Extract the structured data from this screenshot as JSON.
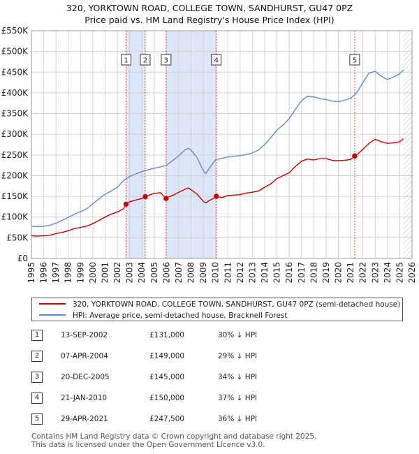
{
  "title_line1": "320, YORKTOWN ROAD, COLLEGE TOWN, SANDHURST, GU47 0PZ",
  "title_line2": "Price paid vs. HM Land Registry's House Price Index (HPI)",
  "colors": {
    "hpi": "#5b8ccc",
    "price": "#c00000",
    "shade": "#dde6f6",
    "grid": "#d0d0d0"
  },
  "chart_data": {
    "type": "line",
    "title": "320, YORKTOWN ROAD, COLLEGE TOWN, SANDHURST, GU47 0PZ — Price paid vs. HM Land Registry's House Price Index (HPI)",
    "xlim": [
      1995,
      2026
    ],
    "ylim": [
      0,
      550000
    ],
    "x_ticks": [
      "1995",
      "1996",
      "1997",
      "1998",
      "1999",
      "2000",
      "2001",
      "2002",
      "2003",
      "2004",
      "2005",
      "2006",
      "2007",
      "2008",
      "2009",
      "2010",
      "2011",
      "2012",
      "2013",
      "2014",
      "2015",
      "2016",
      "2017",
      "2018",
      "2019",
      "2020",
      "2021",
      "2022",
      "2023",
      "2024",
      "2025",
      "2026"
    ],
    "y_ticks": [
      {
        "value": 0,
        "label": "£0"
      },
      {
        "value": 50000,
        "label": "£50K"
      },
      {
        "value": 100000,
        "label": "£100K"
      },
      {
        "value": 150000,
        "label": "£150K"
      },
      {
        "value": 200000,
        "label": "£200K"
      },
      {
        "value": 250000,
        "label": "£250K"
      },
      {
        "value": 300000,
        "label": "£300K"
      },
      {
        "value": 350000,
        "label": "£350K"
      },
      {
        "value": 400000,
        "label": "£400K"
      },
      {
        "value": 450000,
        "label": "£450K"
      },
      {
        "value": 500000,
        "label": "£500K"
      },
      {
        "value": 550000,
        "label": "£550K"
      }
    ],
    "shaded_ranges": [
      [
        2002.71,
        2004.27
      ],
      [
        2005.97,
        2010.06
      ],
      [
        2021.33,
        2021.33
      ]
    ],
    "future_hatch_from": 2025.3,
    "series": [
      {
        "name": "320, YORKTOWN ROAD, COLLEGE TOWN, SANDHURST, GU47 0PZ (semi-detached house)",
        "color": "#c00000",
        "x": [
          1995.0,
          1995.5,
          1996.0,
          1996.5,
          1997.0,
          1997.5,
          1998.0,
          1998.5,
          1999.0,
          1999.5,
          2000.0,
          2000.5,
          2001.0,
          2001.5,
          2002.0,
          2002.5,
          2002.71,
          2003.0,
          2003.5,
          2004.0,
          2004.27,
          2004.5,
          2005.0,
          2005.5,
          2005.97,
          2006.0,
          2006.5,
          2007.0,
          2007.5,
          2007.8,
          2008.0,
          2008.5,
          2009.0,
          2009.2,
          2009.5,
          2010.0,
          2010.06,
          2010.5,
          2011.0,
          2011.5,
          2012.0,
          2012.5,
          2013.0,
          2013.5,
          2014.0,
          2014.5,
          2015.0,
          2015.5,
          2016.0,
          2016.5,
          2017.0,
          2017.5,
          2018.0,
          2018.5,
          2019.0,
          2019.5,
          2020.0,
          2020.5,
          2021.0,
          2021.33,
          2021.5,
          2022.0,
          2022.5,
          2023.0,
          2023.5,
          2024.0,
          2024.5,
          2025.0,
          2025.3
        ],
        "values": [
          55000,
          54000,
          55000,
          56000,
          60000,
          63000,
          67000,
          72000,
          75000,
          78000,
          84000,
          92000,
          100000,
          107000,
          112000,
          120000,
          131000,
          137000,
          141000,
          145000,
          149000,
          152000,
          157000,
          159000,
          145000,
          147000,
          152000,
          160000,
          167000,
          170000,
          166000,
          155000,
          138000,
          134000,
          140000,
          148000,
          150000,
          147000,
          152000,
          153000,
          154000,
          158000,
          160000,
          163000,
          172000,
          180000,
          193000,
          200000,
          207000,
          222000,
          235000,
          240000,
          238000,
          241000,
          241000,
          237000,
          236000,
          237000,
          239000,
          247500,
          250000,
          264000,
          278000,
          288000,
          282000,
          278000,
          279000,
          282000,
          289000
        ]
      },
      {
        "name": "HPI: Average price, semi-detached house, Bracknell Forest",
        "color": "#5b8ccc",
        "x": [
          1995.0,
          1995.5,
          1996.0,
          1996.5,
          1997.0,
          1997.5,
          1998.0,
          1998.5,
          1999.0,
          1999.5,
          2000.0,
          2000.5,
          2001.0,
          2001.5,
          2002.0,
          2002.5,
          2003.0,
          2003.5,
          2004.0,
          2004.5,
          2005.0,
          2005.5,
          2006.0,
          2006.5,
          2007.0,
          2007.5,
          2007.8,
          2008.0,
          2008.5,
          2009.0,
          2009.2,
          2009.5,
          2010.0,
          2010.5,
          2011.0,
          2011.5,
          2012.0,
          2012.5,
          2013.0,
          2013.5,
          2014.0,
          2014.5,
          2015.0,
          2015.5,
          2016.0,
          2016.5,
          2017.0,
          2017.5,
          2018.0,
          2018.5,
          2019.0,
          2019.5,
          2020.0,
          2020.5,
          2021.0,
          2021.5,
          2022.0,
          2022.5,
          2023.0,
          2023.5,
          2024.0,
          2024.5,
          2025.0,
          2025.3
        ],
        "values": [
          78000,
          77000,
          78000,
          80000,
          85000,
          92000,
          99000,
          107000,
          113000,
          120000,
          132000,
          144000,
          155000,
          163000,
          172000,
          188000,
          198000,
          204000,
          210000,
          214000,
          218000,
          221000,
          225000,
          236000,
          248000,
          262000,
          266000,
          262000,
          243000,
          212000,
          205000,
          218000,
          238000,
          242000,
          245000,
          247000,
          248000,
          251000,
          255000,
          262000,
          275000,
          292000,
          310000,
          322000,
          338000,
          360000,
          381000,
          392000,
          390000,
          386000,
          384000,
          380000,
          379000,
          382000,
          387000,
          400000,
          425000,
          448000,
          452000,
          440000,
          432000,
          438000,
          446000,
          455000
        ]
      }
    ],
    "sales": [
      {
        "n": "1",
        "date": "13-SEP-2002",
        "price": "£131,000",
        "hpi": "30% ↓ HPI",
        "x": 2002.71,
        "y": 131000
      },
      {
        "n": "2",
        "date": "07-APR-2004",
        "price": "£149,000",
        "hpi": "29% ↓ HPI",
        "x": 2004.27,
        "y": 149000
      },
      {
        "n": "3",
        "date": "20-DEC-2005",
        "price": "£145,000",
        "hpi": "34% ↓ HPI",
        "x": 2005.97,
        "y": 145000
      },
      {
        "n": "4",
        "date": "21-JAN-2010",
        "price": "£150,000",
        "hpi": "37% ↓ HPI",
        "x": 2010.06,
        "y": 150000
      },
      {
        "n": "5",
        "date": "29-APR-2021",
        "price": "£247,500",
        "hpi": "36% ↓ HPI",
        "x": 2021.33,
        "y": 247500
      }
    ]
  },
  "legend": {
    "price_label": "320, YORKTOWN ROAD, COLLEGE TOWN, SANDHURST, GU47 0PZ (semi-detached house)",
    "hpi_label": "HPI: Average price, semi-detached house, Bracknell Forest"
  },
  "footer": {
    "line1": "Contains HM Land Registry data © Crown copyright and database right 2025.",
    "line2": "This data is licensed under the Open Government Licence v3.0."
  }
}
